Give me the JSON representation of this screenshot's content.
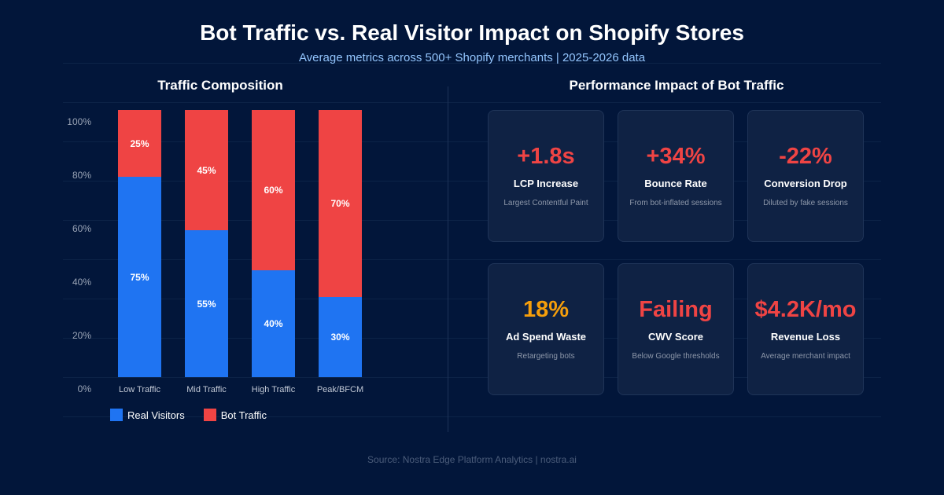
{
  "header": {
    "title": "Bot Traffic vs. Real Visitor Impact on Shopify Stores",
    "subtitle": "Average metrics across 500+ Shopify merchants  |  2025-2026 data"
  },
  "sections": {
    "left": "Traffic Composition",
    "right": "Performance Impact of Bot Traffic"
  },
  "chart_data": {
    "type": "bar",
    "stacked": true,
    "title": "Traffic Composition",
    "categories": [
      "Low Traffic",
      "Mid Traffic",
      "High Traffic",
      "Peak/BFCM"
    ],
    "series": [
      {
        "name": "Real Visitors",
        "values": [
          75,
          55,
          40,
          30
        ],
        "labels": [
          "75%",
          "55%",
          "40%",
          "30%"
        ],
        "color": "#1f74f2"
      },
      {
        "name": "Bot Traffic",
        "values": [
          25,
          45,
          60,
          70
        ],
        "labels": [
          "25%",
          "45%",
          "60%",
          "70%"
        ],
        "color": "#ef4444"
      }
    ],
    "ylim": [
      0,
      100
    ],
    "yticks": [
      "0%",
      "20%",
      "40%",
      "60%",
      "80%",
      "100%"
    ],
    "legend": "bottom-left",
    "grid": true
  },
  "cards": [
    {
      "value": "+1.8s",
      "title": "LCP Increase",
      "desc": "Largest Contentful Paint",
      "color": "#ef4444"
    },
    {
      "value": "+34%",
      "title": "Bounce Rate",
      "desc": "From bot-inflated sessions",
      "color": "#ef4444"
    },
    {
      "value": "-22%",
      "title": "Conversion Drop",
      "desc": "Diluted by fake sessions",
      "color": "#ef4444"
    },
    {
      "value": "18%",
      "title": "Ad Spend Waste",
      "desc": "Retargeting bots",
      "color": "#f59e0b"
    },
    {
      "value": "Failing",
      "title": "CWV Score",
      "desc": "Below Google thresholds",
      "color": "#ef4444"
    },
    {
      "value": "$4.2K/mo",
      "title": "Revenue Loss",
      "desc": "Average merchant impact",
      "color": "#ef4444"
    }
  ],
  "footer": {
    "source": "Source: Nostra Edge Platform Analytics  |  nostra.ai"
  }
}
